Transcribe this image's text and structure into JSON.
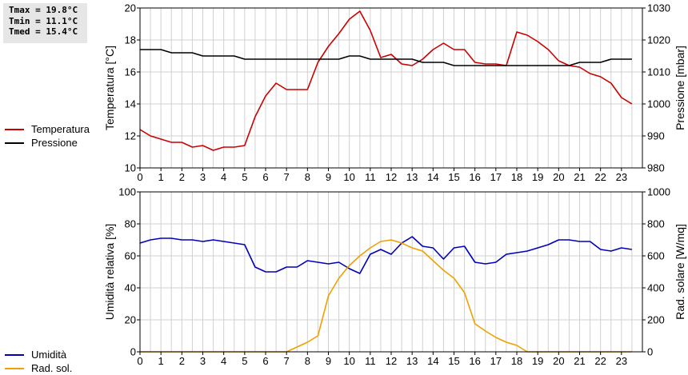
{
  "stats": {
    "tmax": "Tmax = 19.8°C",
    "tmin": "Tmin = 11.1°C",
    "tmed": "Tmed = 15.4°C"
  },
  "legend_top": [
    {
      "label": "Temperatura",
      "color": "#cc0000"
    },
    {
      "label": "Pressione",
      "color": "#000000"
    }
  ],
  "legend_bottom": [
    {
      "label": "Umidità",
      "color": "#0000bb"
    },
    {
      "label": "Rad. sol.",
      "color": "#f0a000"
    }
  ],
  "chart_data": [
    {
      "type": "line",
      "ylabel": "Temperatura [°C]",
      "y2label": "Pressione [mbar]",
      "xlim": [
        0,
        24
      ],
      "ylim": [
        10,
        20
      ],
      "y2lim": [
        980,
        1030
      ],
      "xticks": [
        "0",
        "1",
        "2",
        "3",
        "4",
        "5",
        "6",
        "7",
        "8",
        "9",
        "10",
        "11",
        "12",
        "13",
        "14",
        "15",
        "16",
        "17",
        "18",
        "19",
        "20",
        "21",
        "22",
        "23"
      ],
      "yticks": [
        "10",
        "12",
        "14",
        "16",
        "18",
        "20"
      ],
      "y2ticks": [
        "980",
        "990",
        "1000",
        "1010",
        "1020",
        "1030"
      ],
      "grid": true,
      "series": [
        {
          "name": "Temperatura",
          "axis": "left",
          "color": "#cc0000",
          "x": [
            0,
            0.5,
            1,
            1.5,
            2,
            2.5,
            3,
            3.5,
            4,
            4.5,
            5,
            5.5,
            6,
            6.5,
            7,
            7.5,
            8,
            8.5,
            9,
            9.5,
            10,
            10.5,
            11,
            11.5,
            12,
            12.5,
            13,
            13.5,
            14,
            14.5,
            15,
            15.5,
            16,
            16.5,
            17,
            17.5,
            18,
            18.5,
            19,
            19.5,
            20,
            20.5,
            21,
            21.5,
            22,
            22.5,
            23,
            23.5
          ],
          "y": [
            12.4,
            12.0,
            11.8,
            11.6,
            11.6,
            11.3,
            11.4,
            11.1,
            11.3,
            11.3,
            11.4,
            13.2,
            14.5,
            15.3,
            14.9,
            14.9,
            14.9,
            16.6,
            17.6,
            18.4,
            19.3,
            19.8,
            18.6,
            16.9,
            17.1,
            16.5,
            16.4,
            16.8,
            17.4,
            17.8,
            17.4,
            17.4,
            16.6,
            16.5,
            16.5,
            16.4,
            18.5,
            18.3,
            17.9,
            17.4,
            16.7,
            16.4,
            16.3,
            15.9,
            15.7,
            15.3,
            14.4,
            14.0
          ]
        },
        {
          "name": "Pressione",
          "axis": "right",
          "color": "#000000",
          "x": [
            0,
            1,
            1.5,
            2.5,
            3,
            4,
            4.5,
            5,
            5.5,
            6,
            6.5,
            7,
            7.5,
            8,
            8.5,
            9,
            9.5,
            10,
            10.5,
            11,
            11.5,
            12,
            12.5,
            13,
            13.5,
            14,
            14.5,
            15,
            15.5,
            16,
            16.5,
            17,
            17.5,
            18,
            18.5,
            19,
            19.5,
            20,
            20.5,
            21,
            21.5,
            22,
            22.5,
            23,
            23.5
          ],
          "y": [
            1017,
            1017,
            1016,
            1016,
            1015,
            1015,
            1015,
            1014,
            1014,
            1014,
            1014,
            1014,
            1014,
            1014,
            1014,
            1014,
            1014,
            1015,
            1015,
            1014,
            1014,
            1014,
            1014,
            1014,
            1013,
            1013,
            1013,
            1012,
            1012,
            1012,
            1012,
            1012,
            1012,
            1012,
            1012,
            1012,
            1012,
            1012,
            1012,
            1013,
            1013,
            1013,
            1014,
            1014,
            1014
          ]
        }
      ]
    },
    {
      "type": "line",
      "ylabel": "Umidità relativa [%]",
      "y2label": "Rad. solare [W/mq]",
      "xlim": [
        0,
        24
      ],
      "ylim": [
        0,
        100
      ],
      "y2lim": [
        0,
        1000
      ],
      "xticks": [
        "0",
        "1",
        "2",
        "3",
        "4",
        "5",
        "6",
        "7",
        "8",
        "9",
        "10",
        "11",
        "12",
        "13",
        "14",
        "15",
        "16",
        "17",
        "18",
        "19",
        "20",
        "21",
        "22",
        "23"
      ],
      "yticks": [
        "0",
        "20",
        "40",
        "60",
        "80",
        "100"
      ],
      "y2ticks": [
        "0",
        "200",
        "400",
        "600",
        "800",
        "1000"
      ],
      "grid": true,
      "series": [
        {
          "name": "Umidità",
          "axis": "left",
          "color": "#0000bb",
          "x": [
            0,
            0.5,
            1,
            1.5,
            2,
            2.5,
            3,
            3.5,
            4,
            4.5,
            5,
            5.5,
            6,
            6.5,
            7,
            7.5,
            8,
            8.5,
            9,
            9.5,
            10,
            10.5,
            11,
            11.5,
            12,
            12.5,
            13,
            13.5,
            14,
            14.5,
            15,
            15.5,
            16,
            16.5,
            17,
            17.5,
            18,
            18.5,
            19,
            19.5,
            20,
            20.5,
            21,
            21.5,
            22,
            22.5,
            23,
            23.5
          ],
          "y": [
            68,
            70,
            71,
            71,
            70,
            70,
            69,
            70,
            69,
            68,
            67,
            53,
            50,
            50,
            53,
            53,
            57,
            56,
            55,
            56,
            52,
            49,
            61,
            64,
            61,
            68,
            72,
            66,
            65,
            58,
            65,
            66,
            56,
            55,
            56,
            61,
            62,
            63,
            65,
            67,
            70,
            70,
            69,
            69,
            64,
            63,
            65,
            64
          ]
        },
        {
          "name": "Rad. sol.",
          "axis": "right",
          "color": "#f0a000",
          "x": [
            0,
            1,
            2,
            3,
            4,
            5,
            6,
            7,
            7.5,
            8,
            8.5,
            9,
            9.5,
            10,
            10.5,
            11,
            11.5,
            12,
            12.5,
            13,
            13.5,
            14,
            14.5,
            15,
            15.5,
            16,
            16.5,
            17,
            17.5,
            18,
            18.5,
            19,
            20,
            21,
            22,
            23,
            23.5
          ],
          "y": [
            0,
            0,
            0,
            0,
            0,
            0,
            0,
            0,
            30,
            60,
            100,
            350,
            460,
            540,
            600,
            650,
            690,
            700,
            680,
            650,
            630,
            570,
            510,
            460,
            370,
            175,
            130,
            90,
            60,
            40,
            0,
            0,
            0,
            0,
            0,
            0,
            0
          ]
        }
      ]
    }
  ]
}
